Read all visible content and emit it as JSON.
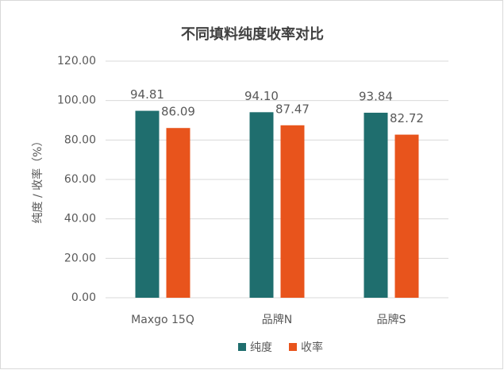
{
  "chart_data": {
    "type": "bar",
    "title": "不同填料纯度收率对比",
    "y_label": "纯度 / 收率（%）",
    "categories": [
      "Maxgo 15Q",
      "品牌N",
      "品牌S"
    ],
    "series": [
      {
        "name": "纯度",
        "color": "#1f6e6e",
        "values": [
          94.81,
          94.1,
          93.84
        ],
        "value_labels": [
          "94.81",
          "94.10",
          "93.84"
        ]
      },
      {
        "name": "收率",
        "color": "#e8541c",
        "values": [
          86.09,
          87.47,
          82.72
        ],
        "value_labels": [
          "86.09",
          "87.47",
          "82.72"
        ]
      }
    ],
    "ylim": [
      0,
      120
    ],
    "yticks": [
      {
        "value": 0,
        "label": "0.00"
      },
      {
        "value": 20,
        "label": "20.00"
      },
      {
        "value": 40,
        "label": "40.00"
      },
      {
        "value": 60,
        "label": "60.00"
      },
      {
        "value": 80,
        "label": "80.00"
      },
      {
        "value": 100,
        "label": "100.00"
      },
      {
        "value": 120,
        "label": "120.00"
      }
    ],
    "grid": true,
    "legend": "bottom"
  }
}
